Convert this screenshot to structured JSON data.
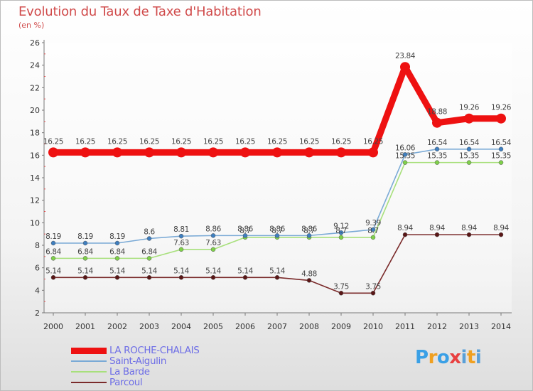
{
  "header": {
    "title": "Evolution du Taux de Taxe d'Habitation",
    "unit": "(en %)"
  },
  "logo": {
    "letters": [
      "P",
      "r",
      "o",
      "x",
      "i",
      "t",
      "i"
    ],
    "colors": [
      "#3aa0e6",
      "#f0a020",
      "#3aa0e6",
      "#e84040",
      "#5aa0d8",
      "#f0a020",
      "#5aa0d8"
    ]
  },
  "chart_data": {
    "type": "line",
    "title": "Evolution du Taux de Taxe d'Habitation",
    "ylabel": "(en %)",
    "xlabel": "",
    "x": [
      "2000",
      "2001",
      "2002",
      "2003",
      "2004",
      "2005",
      "2006",
      "2007",
      "2008",
      "2009",
      "2010",
      "2011",
      "2012",
      "2013",
      "2014"
    ],
    "ylim": [
      2,
      26
    ],
    "yticks": [
      2,
      4,
      6,
      8,
      10,
      12,
      14,
      16,
      18,
      20,
      22,
      24,
      26
    ],
    "grid": false,
    "legend_position": "bottom-left",
    "series": [
      {
        "name": "LA ROCHE-CHALAIS",
        "color": "#ee1111",
        "marker_color": "#ee1111",
        "values": [
          16.25,
          16.25,
          16.25,
          16.25,
          16.25,
          16.25,
          16.25,
          16.25,
          16.25,
          16.25,
          16.25,
          23.84,
          18.88,
          19.26,
          19.26
        ],
        "labels": [
          "16.25",
          "16.25",
          "16.25",
          "16.25",
          "16.25",
          "16.25",
          "16.25",
          "16.25",
          "16.25",
          "16.25",
          "16.25",
          "23.84",
          "18.88",
          "19.26",
          "19.26"
        ]
      },
      {
        "name": "Saint-Aigulin",
        "color": "#7aaad6",
        "marker_color": "#3f7fc0",
        "values": [
          8.19,
          8.19,
          8.19,
          8.6,
          8.81,
          8.86,
          8.86,
          8.86,
          8.86,
          9.12,
          9.39,
          16.06,
          16.54,
          16.54,
          16.54
        ],
        "labels": [
          "8.19",
          "8.19",
          "8.19",
          "8.6",
          "8.81",
          "8.86",
          "8.86",
          "8.86",
          "8.86",
          "9.12",
          "9.39",
          "16.06",
          "16.54",
          "16.54",
          "16.54"
        ]
      },
      {
        "name": "La Barde",
        "color": "#a8e07c",
        "marker_color": "#7fd04a",
        "values": [
          6.84,
          6.84,
          6.84,
          6.84,
          7.63,
          7.63,
          8.7,
          8.7,
          8.7,
          8.7,
          8.7,
          15.35,
          15.35,
          15.35,
          15.35
        ],
        "labels": [
          "6.84",
          "6.84",
          "6.84",
          "6.84",
          "7.63",
          "7.63",
          "8.7",
          "8.7",
          "8.7",
          "8.7",
          "8.7",
          "15.35",
          "15.35",
          "15.35",
          "15.35"
        ]
      },
      {
        "name": "Parcoul",
        "color": "#7a2a2a",
        "marker_color": "#5a1616",
        "values": [
          5.14,
          5.14,
          5.14,
          5.14,
          5.14,
          5.14,
          5.14,
          5.14,
          4.88,
          3.75,
          3.75,
          8.94,
          8.94,
          8.94,
          8.94
        ],
        "labels": [
          "5.14",
          "5.14",
          "5.14",
          "5.14",
          "5.14",
          "5.14",
          "5.14",
          "5.14",
          "4.88",
          "3.75",
          "3.75",
          "8.94",
          "8.94",
          "8.94",
          "8.94"
        ]
      }
    ]
  }
}
